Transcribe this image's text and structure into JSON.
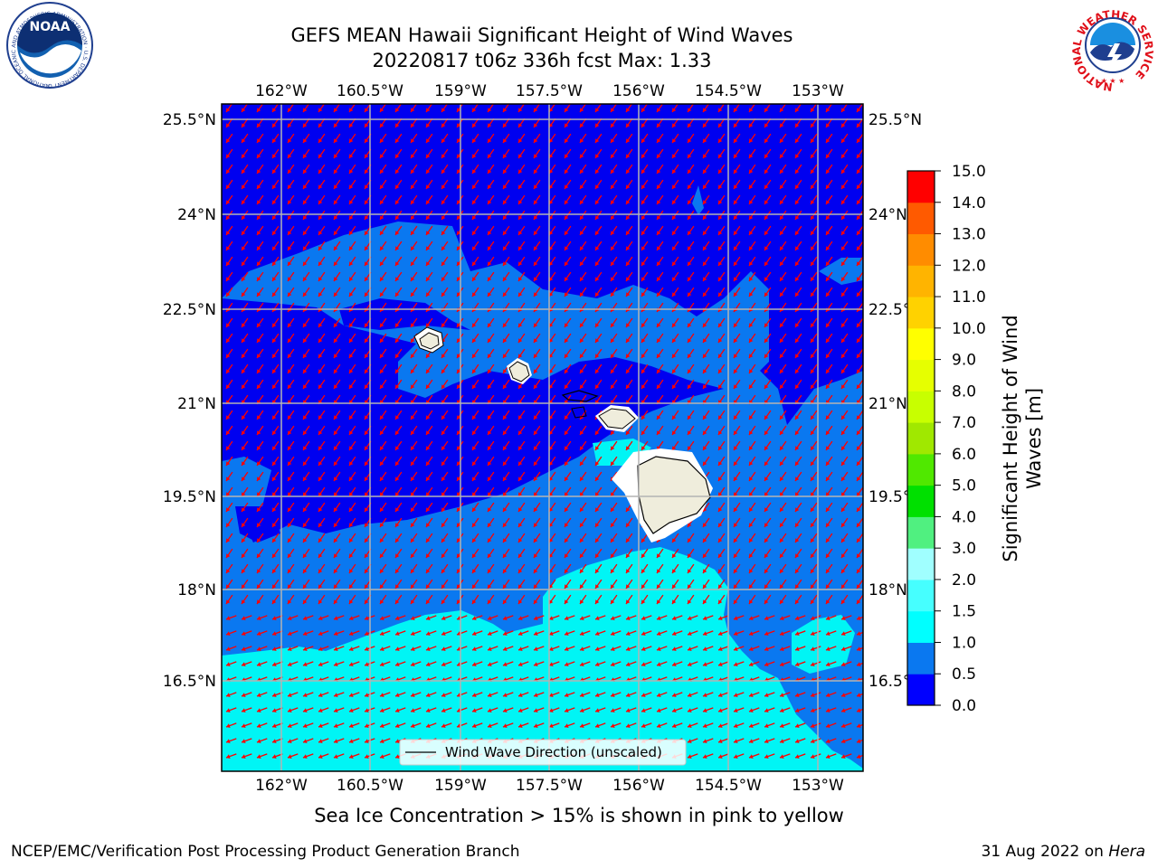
{
  "header": {
    "title_line1": "GEFS MEAN Hawaii Significant Height of Wind Waves",
    "title_line2": "20220817 t06z 336h fcst   Max: 1.33"
  },
  "logos": {
    "noaa_text": "NOAA",
    "noaa_ring_text": "NATIONAL OCEANIC AND ATMOSPHERIC ADMINISTRATION · U.S. DEPARTMENT OF COMMERCE",
    "nws_ring_text": "NATIONAL WEATHER SERVICE"
  },
  "map": {
    "lon_labels": [
      "162°W",
      "160.5°W",
      "159°W",
      "157.5°W",
      "156°W",
      "154.5°W",
      "153°W"
    ],
    "lat_labels": [
      "25.5°N",
      "24°N",
      "22.5°N",
      "21°N",
      "19.5°N",
      "18°N",
      "16.5°N"
    ],
    "legend_label": "Wind Wave Direction (unscaled)",
    "colors": {
      "ocean_low": "#0000f0",
      "ocean_mid": "#0a78f0",
      "ocean_high": "#00f5f5",
      "land": "#efeddc",
      "arrow": "#ff0000",
      "grid": "#b4b4b4"
    }
  },
  "colorbar": {
    "label_line1": "Significant Height of Wind",
    "label_line2": "Waves [m]",
    "ticks": [
      "0.0",
      "0.5",
      "1.0",
      "1.5",
      "2.0",
      "3.0",
      "4.0",
      "5.0",
      "6.0",
      "7.0",
      "8.0",
      "9.0",
      "10.0",
      "11.0",
      "12.0",
      "13.0",
      "14.0",
      "15.0"
    ],
    "colors": [
      "#0000ff",
      "#0a78f0",
      "#00ffff",
      "#46ffff",
      "#a0ffff",
      "#50f080",
      "#00e000",
      "#50e800",
      "#a0e800",
      "#c8ff00",
      "#e6ff00",
      "#ffff00",
      "#ffd200",
      "#ffb400",
      "#ff8c00",
      "#ff5a00",
      "#ff0000"
    ]
  },
  "caption": "Sea Ice Concentration > 15% is shown in pink to yellow",
  "footer": {
    "left": "NCEP/EMC/Verification Post Processing Product Generation Branch",
    "right_date": "31 Aug 2022 on ",
    "right_host": "Hera"
  }
}
